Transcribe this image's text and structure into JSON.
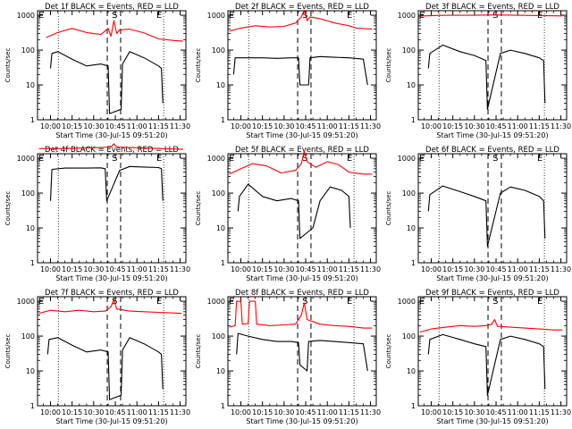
{
  "chart_data": [
    {
      "type": "line",
      "title": "Det 1f BLACK = Events, RED = LLD",
      "xlabel": "Start Time (30-Jul-15 09:51:20)",
      "ylabel": "Counts/sec",
      "xticks": [
        "10:00",
        "10:15",
        "10:30",
        "10:45",
        "11:00",
        "11:15",
        "11:30"
      ],
      "yticks": [
        "1",
        "10",
        "100",
        "1000"
      ],
      "yscale": "log",
      "ylim": [
        1,
        1000
      ],
      "markers": [
        "S",
        "E",
        "E"
      ],
      "series": [
        {
          "color": "#ff0000",
          "x": [
            "09:57",
            "10:05",
            "10:15",
            "10:25",
            "10:35",
            "10:40",
            "10:42",
            "10:44",
            "10:46",
            "10:48",
            "10:55",
            "11:05",
            "11:15",
            "11:25",
            "11:32"
          ],
          "y": [
            230,
            320,
            420,
            320,
            280,
            420,
            250,
            700,
            300,
            380,
            400,
            310,
            210,
            190,
            180
          ]
        },
        {
          "color": "#000000",
          "x": [
            "10:00",
            "10:01",
            "10:05",
            "10:15",
            "10:25",
            "10:35",
            "10:40",
            "10:41",
            "10:49",
            "10:50",
            "10:55",
            "11:05",
            "11:15",
            "11:17",
            "11:18"
          ],
          "y": [
            30,
            80,
            90,
            55,
            35,
            40,
            35,
            1.5,
            2,
            40,
            90,
            60,
            35,
            30,
            3
          ]
        }
      ]
    },
    {
      "type": "line",
      "title": "Det 2f BLACK = Events, RED = LLD",
      "xlabel": "Start Time (30-Jul-15 09:51:20)",
      "ylabel": "Counts/sec",
      "xticks": [
        "10:00",
        "10:15",
        "10:30",
        "10:45",
        "11:00",
        "11:15",
        "11:30"
      ],
      "yticks": [
        "1",
        "10",
        "100",
        "1000"
      ],
      "yscale": "log",
      "ylim": [
        1,
        1000
      ],
      "markers": [
        "S",
        "E",
        "E"
      ],
      "series": [
        {
          "color": "#ff0000",
          "x": [
            "09:52",
            "10:00",
            "10:10",
            "10:20",
            "10:30",
            "10:38",
            "10:42",
            "10:44",
            "10:46",
            "10:48",
            "10:55",
            "11:05",
            "11:15",
            "11:20",
            "11:31"
          ],
          "y": [
            350,
            430,
            500,
            460,
            480,
            600,
            900,
            1400,
            700,
            900,
            800,
            600,
            500,
            430,
            400
          ]
        },
        {
          "color": "#000000",
          "x": [
            "09:55",
            "09:56",
            "10:05",
            "10:15",
            "10:25",
            "10:35",
            "10:40",
            "10:41",
            "10:47",
            "10:48",
            "10:55",
            "11:05",
            "11:15",
            "11:25",
            "11:28"
          ],
          "y": [
            20,
            60,
            60,
            60,
            58,
            60,
            60,
            10,
            10,
            60,
            65,
            62,
            60,
            55,
            10
          ]
        }
      ]
    },
    {
      "type": "line",
      "title": "Det 3f BLACK = Events, RED = LLD",
      "xlabel": "Start Time (30-Jul-15 09:51:20)",
      "ylabel": "Counts/sec",
      "xticks": [
        "10:00",
        "10:15",
        "10:30",
        "10:45",
        "11:00",
        "11:15",
        "11:30"
      ],
      "yticks": [
        "1",
        "10",
        "100",
        "1000"
      ],
      "yscale": "log",
      "ylim": [
        1,
        1000
      ],
      "markers": [
        "S",
        "E",
        "E"
      ],
      "series": [
        {
          "color": "#ff0000",
          "x": [
            "09:52",
            "10:10",
            "10:30",
            "10:45",
            "11:00",
            "11:15",
            "11:31"
          ],
          "y": [
            950,
            1000,
            1000,
            1020,
            1000,
            980,
            960
          ]
        },
        {
          "color": "#000000",
          "x": [
            "09:58",
            "09:59",
            "10:08",
            "10:20",
            "10:30",
            "10:38",
            "10:39",
            "10:48",
            "10:55",
            "11:05",
            "11:15",
            "11:18",
            "11:19"
          ],
          "y": [
            30,
            80,
            140,
            90,
            70,
            50,
            2,
            80,
            100,
            80,
            60,
            50,
            3
          ]
        }
      ]
    },
    {
      "type": "line",
      "title": "Det 4f BLACK = Events, RED = LLD",
      "xlabel": "Start Time (30-Jul-15 09:51:20)",
      "ylabel": "Counts/sec",
      "xticks": [
        "10:00",
        "10:15",
        "10:30",
        "10:45",
        "11:00",
        "11:15",
        "11:30"
      ],
      "yticks": [
        "1",
        "10",
        "100",
        "1000"
      ],
      "yscale": "log",
      "ylim": [
        1,
        1000
      ],
      "markers": [
        "S",
        "E",
        "E"
      ],
      "series": [
        {
          "color": "#ff0000",
          "x": [
            "09:52",
            "10:10",
            "10:30",
            "10:42",
            "10:44",
            "10:46",
            "11:00",
            "11:15",
            "11:32"
          ],
          "y": [
            1900,
            1900,
            2000,
            2100,
            2600,
            2100,
            2000,
            1900,
            1800
          ]
        },
        {
          "color": "#000000",
          "x": [
            "10:00",
            "10:01",
            "10:10",
            "10:25",
            "10:35",
            "10:38",
            "10:39",
            "10:48",
            "10:55",
            "11:05",
            "11:15",
            "11:17",
            "11:18"
          ],
          "y": [
            60,
            480,
            520,
            520,
            530,
            500,
            60,
            450,
            580,
            560,
            540,
            500,
            60
          ]
        }
      ]
    },
    {
      "type": "line",
      "title": "Det 5f BLACK = Events, RED = LLD",
      "xlabel": "Start Time (30-Jul-15 09:51:20)",
      "ylabel": "Counts/sec",
      "xticks": [
        "10:00",
        "10:15",
        "10:30",
        "10:45",
        "11:00",
        "11:15",
        "11:30"
      ],
      "yticks": [
        "1",
        "10",
        "100",
        "1000"
      ],
      "yscale": "log",
      "ylim": [
        1,
        1000
      ],
      "markers": [
        "S",
        "E",
        "E"
      ],
      "series": [
        {
          "color": "#ff0000",
          "x": [
            "09:52",
            "10:00",
            "10:08",
            "10:18",
            "10:28",
            "10:38",
            "10:42",
            "10:44",
            "10:46",
            "10:52",
            "11:00",
            "11:08",
            "11:15",
            "11:25",
            "11:31"
          ],
          "y": [
            350,
            500,
            700,
            600,
            380,
            450,
            700,
            1600,
            800,
            550,
            800,
            650,
            400,
            350,
            350
          ]
        },
        {
          "color": "#000000",
          "x": [
            "09:58",
            "09:59",
            "10:05",
            "10:15",
            "10:25",
            "10:35",
            "10:40",
            "10:41",
            "10:50",
            "10:55",
            "11:02",
            "11:10",
            "11:15",
            "11:16"
          ],
          "y": [
            30,
            80,
            180,
            80,
            60,
            70,
            60,
            5,
            10,
            60,
            150,
            120,
            80,
            10
          ]
        }
      ]
    },
    {
      "type": "line",
      "title": "Det 6f BLACK = Events, RED = LLD",
      "xlabel": "Start Time (30-Jul-15 09:51:20)",
      "ylabel": "Counts/sec",
      "xticks": [
        "10:00",
        "10:15",
        "10:30",
        "10:45",
        "11:00",
        "11:15",
        "11:30"
      ],
      "yticks": [
        "1",
        "10",
        "100",
        "1000"
      ],
      "yscale": "log",
      "ylim": [
        1,
        1000
      ],
      "markers": [
        "S",
        "E",
        "E"
      ],
      "series": [
        {
          "color": "#000000",
          "x": [
            "09:58",
            "09:59",
            "10:08",
            "10:20",
            "10:30",
            "10:38",
            "10:39",
            "10:48",
            "10:55",
            "11:05",
            "11:15",
            "11:18",
            "11:19"
          ],
          "y": [
            30,
            90,
            160,
            110,
            80,
            60,
            3,
            100,
            150,
            120,
            80,
            60,
            5
          ]
        }
      ]
    },
    {
      "type": "line",
      "title": "Det 7f BLACK = Events, RED = LLD",
      "xlabel": "Start Time (30-Jul-15 09:51:20)",
      "ylabel": "Counts/sec",
      "xticks": [
        "10:00",
        "10:15",
        "10:30",
        "10:45",
        "11:00",
        "11:15",
        "11:30"
      ],
      "yticks": [
        "1",
        "10",
        "100",
        "1000"
      ],
      "yscale": "log",
      "ylim": [
        1,
        1000
      ],
      "markers": [
        "S",
        "E",
        "E"
      ],
      "series": [
        {
          "color": "#ff0000",
          "x": [
            "09:52",
            "10:00",
            "10:10",
            "10:20",
            "10:30",
            "10:38",
            "10:42",
            "10:44",
            "10:46",
            "10:55",
            "11:05",
            "11:15",
            "11:25",
            "11:31"
          ],
          "y": [
            450,
            550,
            500,
            550,
            500,
            520,
            700,
            1100,
            600,
            520,
            500,
            480,
            460,
            450
          ]
        },
        {
          "color": "#000000",
          "x": [
            "09:58",
            "09:59",
            "10:05",
            "10:15",
            "10:25",
            "10:35",
            "10:40",
            "10:41",
            "10:49",
            "10:50",
            "10:55",
            "11:05",
            "11:15",
            "11:17",
            "11:18"
          ],
          "y": [
            30,
            80,
            90,
            55,
            35,
            40,
            35,
            1.5,
            2,
            40,
            90,
            60,
            35,
            30,
            3
          ]
        }
      ]
    },
    {
      "type": "line",
      "title": "Det 8f BLACK = Events, RED = LLD",
      "xlabel": "Start Time (30-Jul-15 09:51:20)",
      "ylabel": "Counts/sec",
      "xticks": [
        "10:00",
        "10:15",
        "10:30",
        "10:45",
        "11:00",
        "11:15",
        "11:30"
      ],
      "yticks": [
        "1",
        "10",
        "100",
        "1000"
      ],
      "yscale": "log",
      "ylim": [
        1,
        1000
      ],
      "markers": [
        "S",
        "E",
        "E"
      ],
      "series": [
        {
          "color": "#ff0000",
          "x": [
            "09:52",
            "09:56",
            "09:57",
            "10:00",
            "10:01",
            "10:05",
            "10:06",
            "10:10",
            "10:11",
            "10:20",
            "10:30",
            "10:38",
            "10:42",
            "10:44",
            "10:46",
            "10:55",
            "11:05",
            "11:15",
            "11:25",
            "11:31"
          ],
          "y": [
            180,
            200,
            1000,
            1000,
            220,
            230,
            1000,
            1000,
            220,
            200,
            210,
            220,
            400,
            900,
            300,
            220,
            200,
            190,
            170,
            170
          ]
        },
        {
          "color": "#000000",
          "x": [
            "09:57",
            "09:58",
            "10:05",
            "10:15",
            "10:25",
            "10:35",
            "10:40",
            "10:41",
            "10:46",
            "10:47",
            "10:55",
            "11:05",
            "11:15",
            "11:25",
            "11:28"
          ],
          "y": [
            30,
            120,
            100,
            80,
            70,
            70,
            65,
            15,
            10,
            70,
            75,
            70,
            65,
            60,
            10
          ]
        }
      ]
    },
    {
      "type": "line",
      "title": "Det 9f BLACK = Events, RED = LLD",
      "xlabel": "Start Time (30-Jul-15 09:51:20)",
      "ylabel": "Counts/sec",
      "xticks": [
        "10:00",
        "10:15",
        "10:30",
        "10:45",
        "11:00",
        "11:15",
        "11:30"
      ],
      "yticks": [
        "1",
        "10",
        "100",
        "1000"
      ],
      "yscale": "log",
      "ylim": [
        1,
        1000
      ],
      "markers": [
        "S",
        "E",
        "E"
      ],
      "series": [
        {
          "color": "#ff0000",
          "x": [
            "09:52",
            "10:00",
            "10:10",
            "10:20",
            "10:30",
            "10:38",
            "10:42",
            "10:44",
            "10:46",
            "10:55",
            "11:05",
            "11:15",
            "11:25",
            "11:31"
          ],
          "y": [
            130,
            160,
            180,
            200,
            190,
            200,
            220,
            300,
            190,
            180,
            170,
            160,
            150,
            150
          ]
        },
        {
          "color": "#000000",
          "x": [
            "09:58",
            "09:59",
            "10:08",
            "10:20",
            "10:30",
            "10:38",
            "10:39",
            "10:48",
            "10:55",
            "11:05",
            "11:15",
            "11:18",
            "11:19"
          ],
          "y": [
            30,
            80,
            110,
            80,
            60,
            50,
            2,
            80,
            100,
            80,
            60,
            50,
            3
          ]
        }
      ]
    }
  ]
}
